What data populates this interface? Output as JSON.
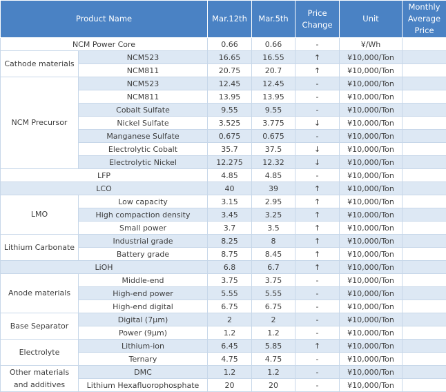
{
  "headers": [
    "Product Name",
    "Mar.12th",
    "Mar.5th",
    "Price Change",
    "Unit",
    "Monthly Average Price"
  ],
  "rows": [
    {
      "cat": "",
      "span": 0,
      "name": "NCM Power Core",
      "mar12": "0.66",
      "mar5": "0.66",
      "change": "-",
      "unit": "¥/Wh",
      "avg": "",
      "shade": false,
      "merged": true
    },
    {
      "cat": "Cathode materials",
      "span": 2,
      "name": "NCM523",
      "mar12": "16.65",
      "mar5": "16.55",
      "change": "↑",
      "unit": "¥10,000/Ton",
      "avg": "",
      "shade": true
    },
    {
      "cat": "",
      "span": 0,
      "name": "NCM811",
      "mar12": "20.75",
      "mar5": "20.7",
      "change": "↑",
      "unit": "¥10,000/Ton",
      "avg": "",
      "shade": false
    },
    {
      "cat": "NCM Precursor",
      "span": 7,
      "name": "NCM523",
      "mar12": "12.45",
      "mar5": "12.45",
      "change": "-",
      "unit": "¥10,000/Ton",
      "avg": "",
      "shade": true
    },
    {
      "cat": "",
      "span": 0,
      "name": "NCM811",
      "mar12": "13.95",
      "mar5": "13.95",
      "change": "-",
      "unit": "¥10,000/Ton",
      "avg": "",
      "shade": false
    },
    {
      "cat": "",
      "span": 0,
      "name": "Cobalt Sulfate",
      "mar12": "9.55",
      "mar5": "9.55",
      "change": "-",
      "unit": "¥10,000/Ton",
      "avg": "",
      "shade": true
    },
    {
      "cat": "",
      "span": 0,
      "name": "Nickel Sulfate",
      "mar12": "3.525",
      "mar5": "3.775",
      "change": "↓",
      "unit": "¥10,000/Ton",
      "avg": "",
      "shade": false
    },
    {
      "cat": "",
      "span": 0,
      "name": "Manganese Sulfate",
      "mar12": "0.675",
      "mar5": "0.675",
      "change": "-",
      "unit": "¥10,000/Ton",
      "avg": "",
      "shade": true
    },
    {
      "cat": "",
      "span": 0,
      "name": "Electrolytic Cobalt",
      "mar12": "35.7",
      "mar5": "37.5",
      "change": "↓",
      "unit": "¥10,000/Ton",
      "avg": "",
      "shade": false
    },
    {
      "cat": "",
      "span": 0,
      "name": "Electrolytic Nickel",
      "mar12": "12.275",
      "mar5": "12.32",
      "change": "↓",
      "unit": "¥10,000/Ton",
      "avg": "",
      "shade": true
    },
    {
      "cat": "",
      "span": 0,
      "name": "LFP",
      "mar12": "4.85",
      "mar5": "4.85",
      "change": "-",
      "unit": "¥10,000/Ton",
      "avg": "",
      "shade": false,
      "merged": true
    },
    {
      "cat": "",
      "span": 0,
      "name": "LCO",
      "mar12": "40",
      "mar5": "39",
      "change": "↑",
      "unit": "¥10,000/Ton",
      "avg": "",
      "shade": true,
      "merged": true
    },
    {
      "cat": "LMO",
      "span": 3,
      "name": "Low capacity",
      "mar12": "3.15",
      "mar5": "2.95",
      "change": "↑",
      "unit": "¥10,000/Ton",
      "avg": "",
      "shade": false
    },
    {
      "cat": "",
      "span": 0,
      "name": "High compaction density",
      "mar12": "3.45",
      "mar5": "3.25",
      "change": "↑",
      "unit": "¥10,000/Ton",
      "avg": "",
      "shade": true
    },
    {
      "cat": "",
      "span": 0,
      "name": "Small power",
      "mar12": "3.7",
      "mar5": "3.5",
      "change": "↑",
      "unit": "¥10,000/Ton",
      "avg": "",
      "shade": false
    },
    {
      "cat": "Lithium Carbonate",
      "span": 2,
      "name": "Industrial grade",
      "mar12": "8.25",
      "mar5": "8",
      "change": "↑",
      "unit": "¥10,000/Ton",
      "avg": "",
      "shade": true
    },
    {
      "cat": "",
      "span": 0,
      "name": "Battery grade",
      "mar12": "8.75",
      "mar5": "8.45",
      "change": "↑",
      "unit": "¥10,000/Ton",
      "avg": "",
      "shade": false
    },
    {
      "cat": "",
      "span": 0,
      "name": "LiOH",
      "mar12": "6.8",
      "mar5": "6.7",
      "change": "↑",
      "unit": "¥10,000/Ton",
      "avg": "",
      "shade": true,
      "merged": true
    },
    {
      "cat": "Anode materials",
      "span": 3,
      "name": "Middle-end",
      "mar12": "3.75",
      "mar5": "3.75",
      "change": "-",
      "unit": "¥10,000/Ton",
      "avg": "",
      "shade": false
    },
    {
      "cat": "",
      "span": 0,
      "name": "High-end power",
      "mar12": "5.55",
      "mar5": "5.55",
      "change": "-",
      "unit": "¥10,000/Ton",
      "avg": "",
      "shade": true
    },
    {
      "cat": "",
      "span": 0,
      "name": "High-end digital",
      "mar12": "6.75",
      "mar5": "6.75",
      "change": "-",
      "unit": "¥10,000/Ton",
      "avg": "",
      "shade": false
    },
    {
      "cat": "Base Separator",
      "span": 2,
      "name": "Digital (7μm)",
      "mar12": "2",
      "mar5": "2",
      "change": "-",
      "unit": "¥10,000/Ton",
      "avg": "",
      "shade": true
    },
    {
      "cat": "",
      "span": 0,
      "name": "Power (9μm)",
      "mar12": "1.2",
      "mar5": "1.2",
      "change": "-",
      "unit": "¥10,000/Ton",
      "avg": "",
      "shade": false
    },
    {
      "cat": "Electrolyte",
      "span": 2,
      "name": "Lithium-ion",
      "mar12": "6.45",
      "mar5": "5.85",
      "change": "↑",
      "unit": "¥10,000/Ton",
      "avg": "",
      "shade": true
    },
    {
      "cat": "",
      "span": 0,
      "name": "Ternary",
      "mar12": "4.75",
      "mar5": "4.75",
      "change": "-",
      "unit": "¥10,000/Ton",
      "avg": "",
      "shade": false
    },
    {
      "cat": "Other materials and additives",
      "span": 2,
      "name": "DMC",
      "mar12": "1.2",
      "mar5": "1.2",
      "change": "-",
      "unit": "¥10,000/Ton",
      "avg": "",
      "shade": true
    },
    {
      "cat": "",
      "span": 0,
      "name": "Lithium Hexafluorophosphate",
      "mar12": "20",
      "mar5": "20",
      "change": "-",
      "unit": "¥10,000/Ton",
      "avg": "",
      "shade": false
    }
  ]
}
